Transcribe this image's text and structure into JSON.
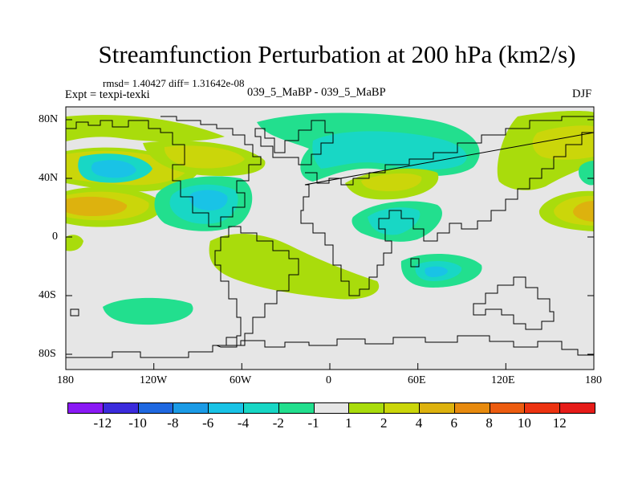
{
  "title": "Streamfunction Perturbation at 200 hPa (km2/s)",
  "stats": "rmsd= 1.40427 diff= 1.31642e-08",
  "experiment": "Expt = texpi-texki",
  "experiment_name": "039_5_MaBP - 039_5_MaBP",
  "season": "DJF",
  "lat_labels": [
    "80N",
    "40N",
    "0",
    "40S",
    "80S"
  ],
  "lon_labels": [
    "180",
    "120W",
    "60W",
    "0",
    "60E",
    "120E",
    "180"
  ],
  "colorbar": {
    "labels": [
      "-12",
      "-10",
      "-8",
      "-6",
      "-4",
      "-2",
      "-1",
      "1",
      "2",
      "4",
      "6",
      "8",
      "10",
      "12"
    ],
    "colors": [
      "#8a19f5",
      "#3b2bdc",
      "#1f68e0",
      "#1b9be6",
      "#19c3e6",
      "#18d7c5",
      "#22df8e",
      "#e6e6e6",
      "#a9dc0c",
      "#cbd60a",
      "#ddb20e",
      "#e78a0e",
      "#ec5c10",
      "#ec3311",
      "#e61c19"
    ]
  },
  "map": {
    "background": "#e6e6e6",
    "field_palette": {
      "-4": "#19c3e6",
      "-2": "#18d7c5",
      "-1": "#22df8e",
      "1": "#a9dc0c",
      "2": "#cbd60a",
      "4": "#ddb20e",
      "6": "#e78a0e"
    }
  }
}
